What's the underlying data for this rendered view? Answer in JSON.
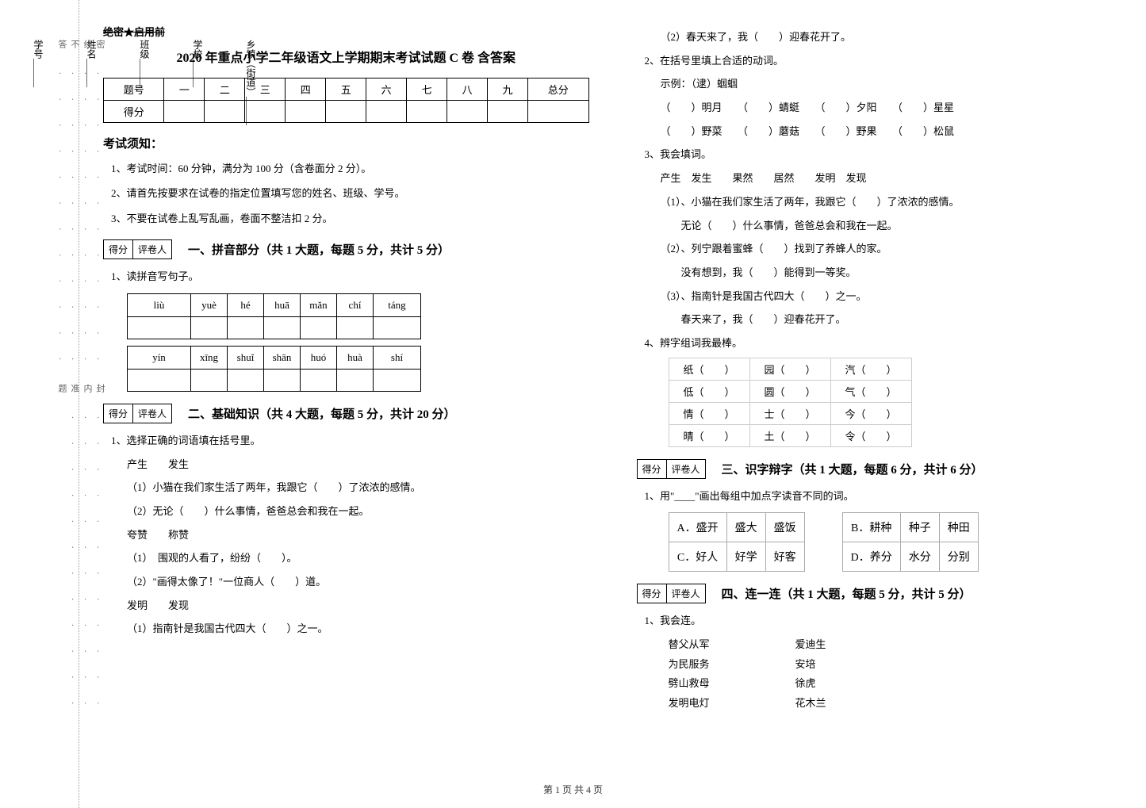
{
  "side": {
    "fields": [
      "乡镇（街道）______",
      "学校______",
      "班级______",
      "姓名______",
      "学号______"
    ],
    "cutline": "密............封............线............内............不............准............答............题"
  },
  "header": {
    "confidential": "绝密★启用前",
    "title": "2020 年重点小学二年级语文上学期期末考试试题 C 卷  含答案"
  },
  "score_table": {
    "row1": [
      "题号",
      "一",
      "二",
      "三",
      "四",
      "五",
      "六",
      "七",
      "八",
      "九",
      "总分"
    ],
    "row2_label": "得分"
  },
  "exam_notice": {
    "heading": "考试须知：",
    "items": [
      "1、考试时间：60 分钟，满分为 100 分（含卷面分 2 分）。",
      "2、请首先按要求在试卷的指定位置填写您的姓名、班级、学号。",
      "3、不要在试卷上乱写乱画，卷面不整洁扣 2 分。"
    ]
  },
  "grade_box": {
    "left": "得分",
    "right": "评卷人"
  },
  "part1": {
    "title": "一、拼音部分（共 1 大题，每题 5 分，共计 5 分）",
    "q1_label": "1、读拼音写句子。",
    "pinyin_row_a": [
      "liù",
      "yuè",
      "hé",
      "huā",
      "mǎn",
      "chí",
      "táng"
    ],
    "pinyin_row_b": [
      "yín",
      "xīng",
      "shuǐ",
      "shān",
      "huó",
      "huà",
      "shí"
    ]
  },
  "part2": {
    "title": "二、基础知识（共 4 大题，每题 5 分，共计 20 分）",
    "q1_label": "1、选择正确的词语填在括号里。",
    "q1_pair1": "产生　　发生",
    "q1_1": "（1）小猫在我们家生活了两年，我跟它（　　）了浓浓的感情。",
    "q1_2": "（2）无论（　　）什么事情，爸爸总会和我在一起。",
    "q1_pair2": "夸赞　　称赞",
    "q1_3": "（1）　围观的人看了，纷纷（　　）。",
    "q1_4": "（2）\"画得太像了！\"一位商人（　　）道。",
    "q1_pair3": "发明　　发现",
    "q1_5": "（1）指南针是我国古代四大（　　）之一。",
    "q1_6": "（2）春天来了，我（　　）迎春花开了。",
    "q2_label": "2、在括号里填上合适的动词。",
    "q2_example": "示例：（逮）蝈蝈",
    "q2_line1": "（　　）明月　　（　　）蜻蜓　　（　　）夕阳　　（　　）星星",
    "q2_line2": "（　　）野菜　　（　　）蘑菇　　（　　）野果　　（　　）松鼠",
    "q3_label": "3、我会填词。",
    "q3_words": "产生　发生　　果然　　居然　　发明　发现",
    "q3_1": "（1）、小猫在我们家生活了两年，我跟它（　　）了浓浓的感情。",
    "q3_1b": "　　无论（　　）什么事情，爸爸总会和我在一起。",
    "q3_2": "（2）、列宁跟着蜜蜂（　　）找到了养蜂人的家。",
    "q3_2b": "　　没有想到，我（　　）能得到一等奖。",
    "q3_3": "（3）、指南针是我国古代四大（　　）之一。",
    "q3_3b": "　　春天来了，我（　　）迎春花开了。",
    "q4_label": "4、辨字组词我最棒。",
    "q4_rows": [
      [
        "纸（　　）",
        "园（　　）",
        "汽（　　）"
      ],
      [
        "低（　　）",
        "圆（　　）",
        "气（　　）"
      ],
      [
        "情（　　）",
        "士（　　）",
        "今（　　）"
      ],
      [
        "晴（　　）",
        "土（　　）",
        "令（　　）"
      ]
    ]
  },
  "part3": {
    "title": "三、识字辩字（共 1 大题，每题 6 分，共计 6 分）",
    "q1_label": "1、用\"____\"画出每组中加点字读音不同的词。",
    "row1": [
      "A．盛开",
      "盛大",
      "盛饭",
      "",
      "B．耕种",
      "种子",
      "种田"
    ],
    "row2": [
      "C．好人",
      "好学",
      "好客",
      "",
      "D．养分",
      "水分",
      "分别"
    ]
  },
  "part4": {
    "title": "四、连一连（共 1 大题，每题 5 分，共计 5 分）",
    "q1_label": "1、我会连。",
    "left": [
      "替父从军",
      "为民服务",
      "劈山救母",
      "发明电灯"
    ],
    "right": [
      "爱迪生",
      "安培",
      "徐虎",
      "花木兰"
    ]
  },
  "footer": "第 1 页 共 4 页"
}
